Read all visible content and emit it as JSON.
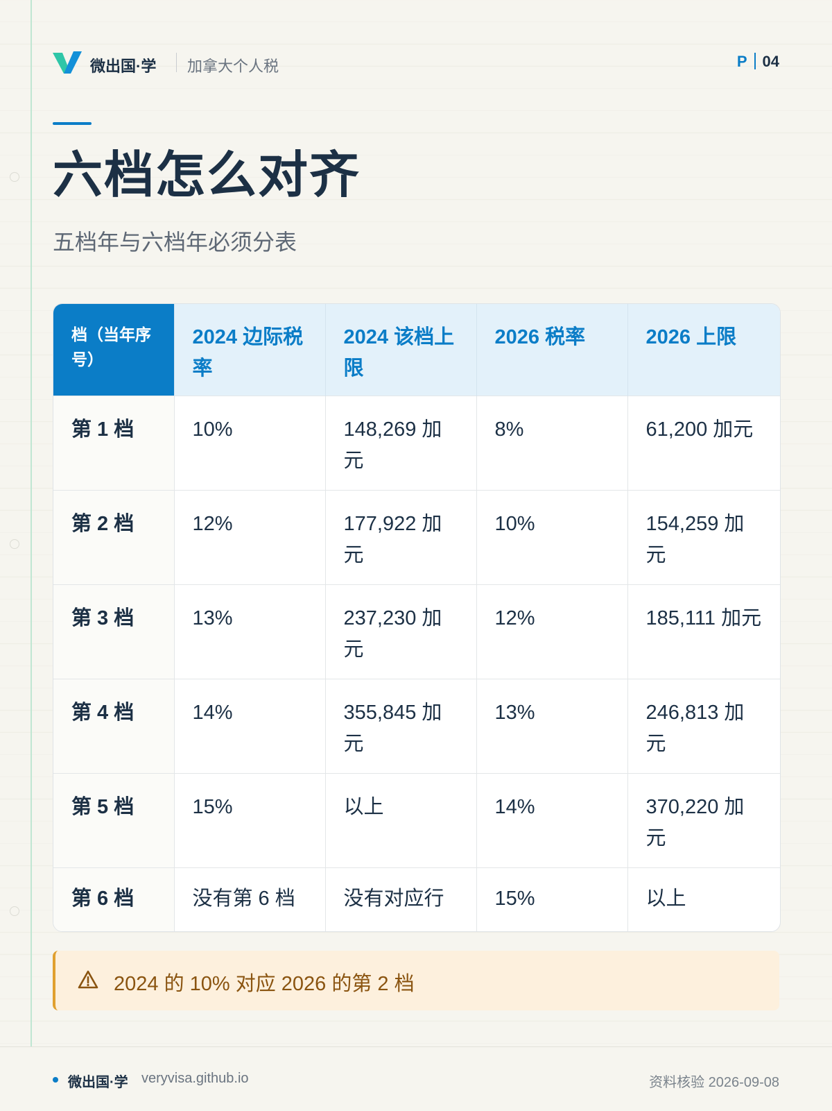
{
  "header": {
    "brand": "微出国·学",
    "section": "加拿大个人税",
    "page_prefix": "P",
    "page_number": "04"
  },
  "title": "六档怎么对齐",
  "subtitle": "五档年与六档年必须分表",
  "table": {
    "headers": [
      "档（当年序号）",
      "2024 边际税率",
      "2024 该档上限",
      "2026 税率",
      "2026 上限"
    ],
    "rows": [
      [
        "第 1 档",
        "10%",
        "148,269 加元",
        "8%",
        "61,200 加元"
      ],
      [
        "第 2 档",
        "12%",
        "177,922 加元",
        "10%",
        "154,259 加元"
      ],
      [
        "第 3 档",
        "13%",
        "237,230 加元",
        "12%",
        "185,111 加元"
      ],
      [
        "第 4 档",
        "14%",
        "355,845 加元",
        "13%",
        "246,813 加元"
      ],
      [
        "第 5 档",
        "15%",
        "以上",
        "14%",
        "370,220 加元"
      ],
      [
        "第 6 档",
        "没有第 6 档",
        "没有对应行",
        "15%",
        "以上"
      ]
    ]
  },
  "note": {
    "icon": "warning-icon",
    "text": "2024 的 10% 对应 2026 的第 2 档"
  },
  "footer": {
    "brand": "微出国·学",
    "url": "veryvisa.github.io",
    "date_text": "资料核验 2026-09-08"
  },
  "colors": {
    "accent": "#0b7dc7",
    "header_bg": "#e3f1fa",
    "text_dark": "#1c3045",
    "note_bg": "#fdf0dd",
    "note_border": "#e0a030",
    "note_text": "#8a5410"
  }
}
